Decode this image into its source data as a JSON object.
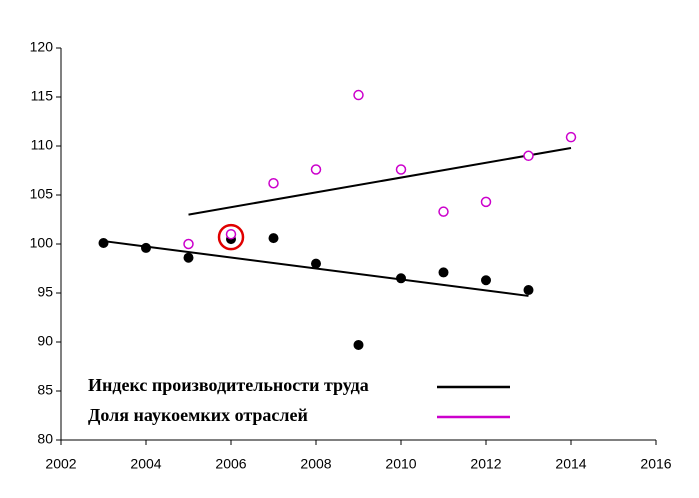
{
  "chart_data": {
    "type": "scatter",
    "xlim": [
      2002,
      2016
    ],
    "xticks": [
      2002,
      2004,
      2006,
      2008,
      2010,
      2012,
      2014,
      2016
    ],
    "ylim": [
      80,
      120
    ],
    "yticks": [
      80,
      85,
      90,
      95,
      100,
      105,
      110,
      115,
      120
    ],
    "legend_position": "lower left",
    "series": [
      {
        "name": "Индекс производительности труда",
        "color": "#000000",
        "marker": "filled",
        "x": [
          2003,
          2004,
          2005,
          2006,
          2007,
          2008,
          2009,
          2010,
          2011,
          2012,
          2013
        ],
        "values": [
          100.1,
          99.6,
          98.6,
          100.5,
          100.6,
          98.0,
          89.7,
          96.5,
          97.1,
          96.3,
          95.3
        ],
        "trend": {
          "x": [
            2003,
            2013
          ],
          "values": [
            100.3,
            94.7
          ],
          "color": "#000000"
        }
      },
      {
        "name": "Доля наукоемких отраслей",
        "color": "#cc00cc",
        "marker": "open",
        "x": [
          2005,
          2006,
          2007,
          2008,
          2009,
          2010,
          2011,
          2012,
          2013,
          2014
        ],
        "values": [
          100.0,
          101.0,
          106.2,
          107.6,
          115.2,
          107.6,
          103.3,
          104.3,
          109.0,
          110.9
        ],
        "trend": {
          "x": [
            2005,
            2014
          ],
          "values": [
            103.0,
            109.8
          ],
          "color": "#000000"
        }
      }
    ],
    "highlight": {
      "x": 2006,
      "y": 100.7,
      "color": "#e00000"
    }
  }
}
